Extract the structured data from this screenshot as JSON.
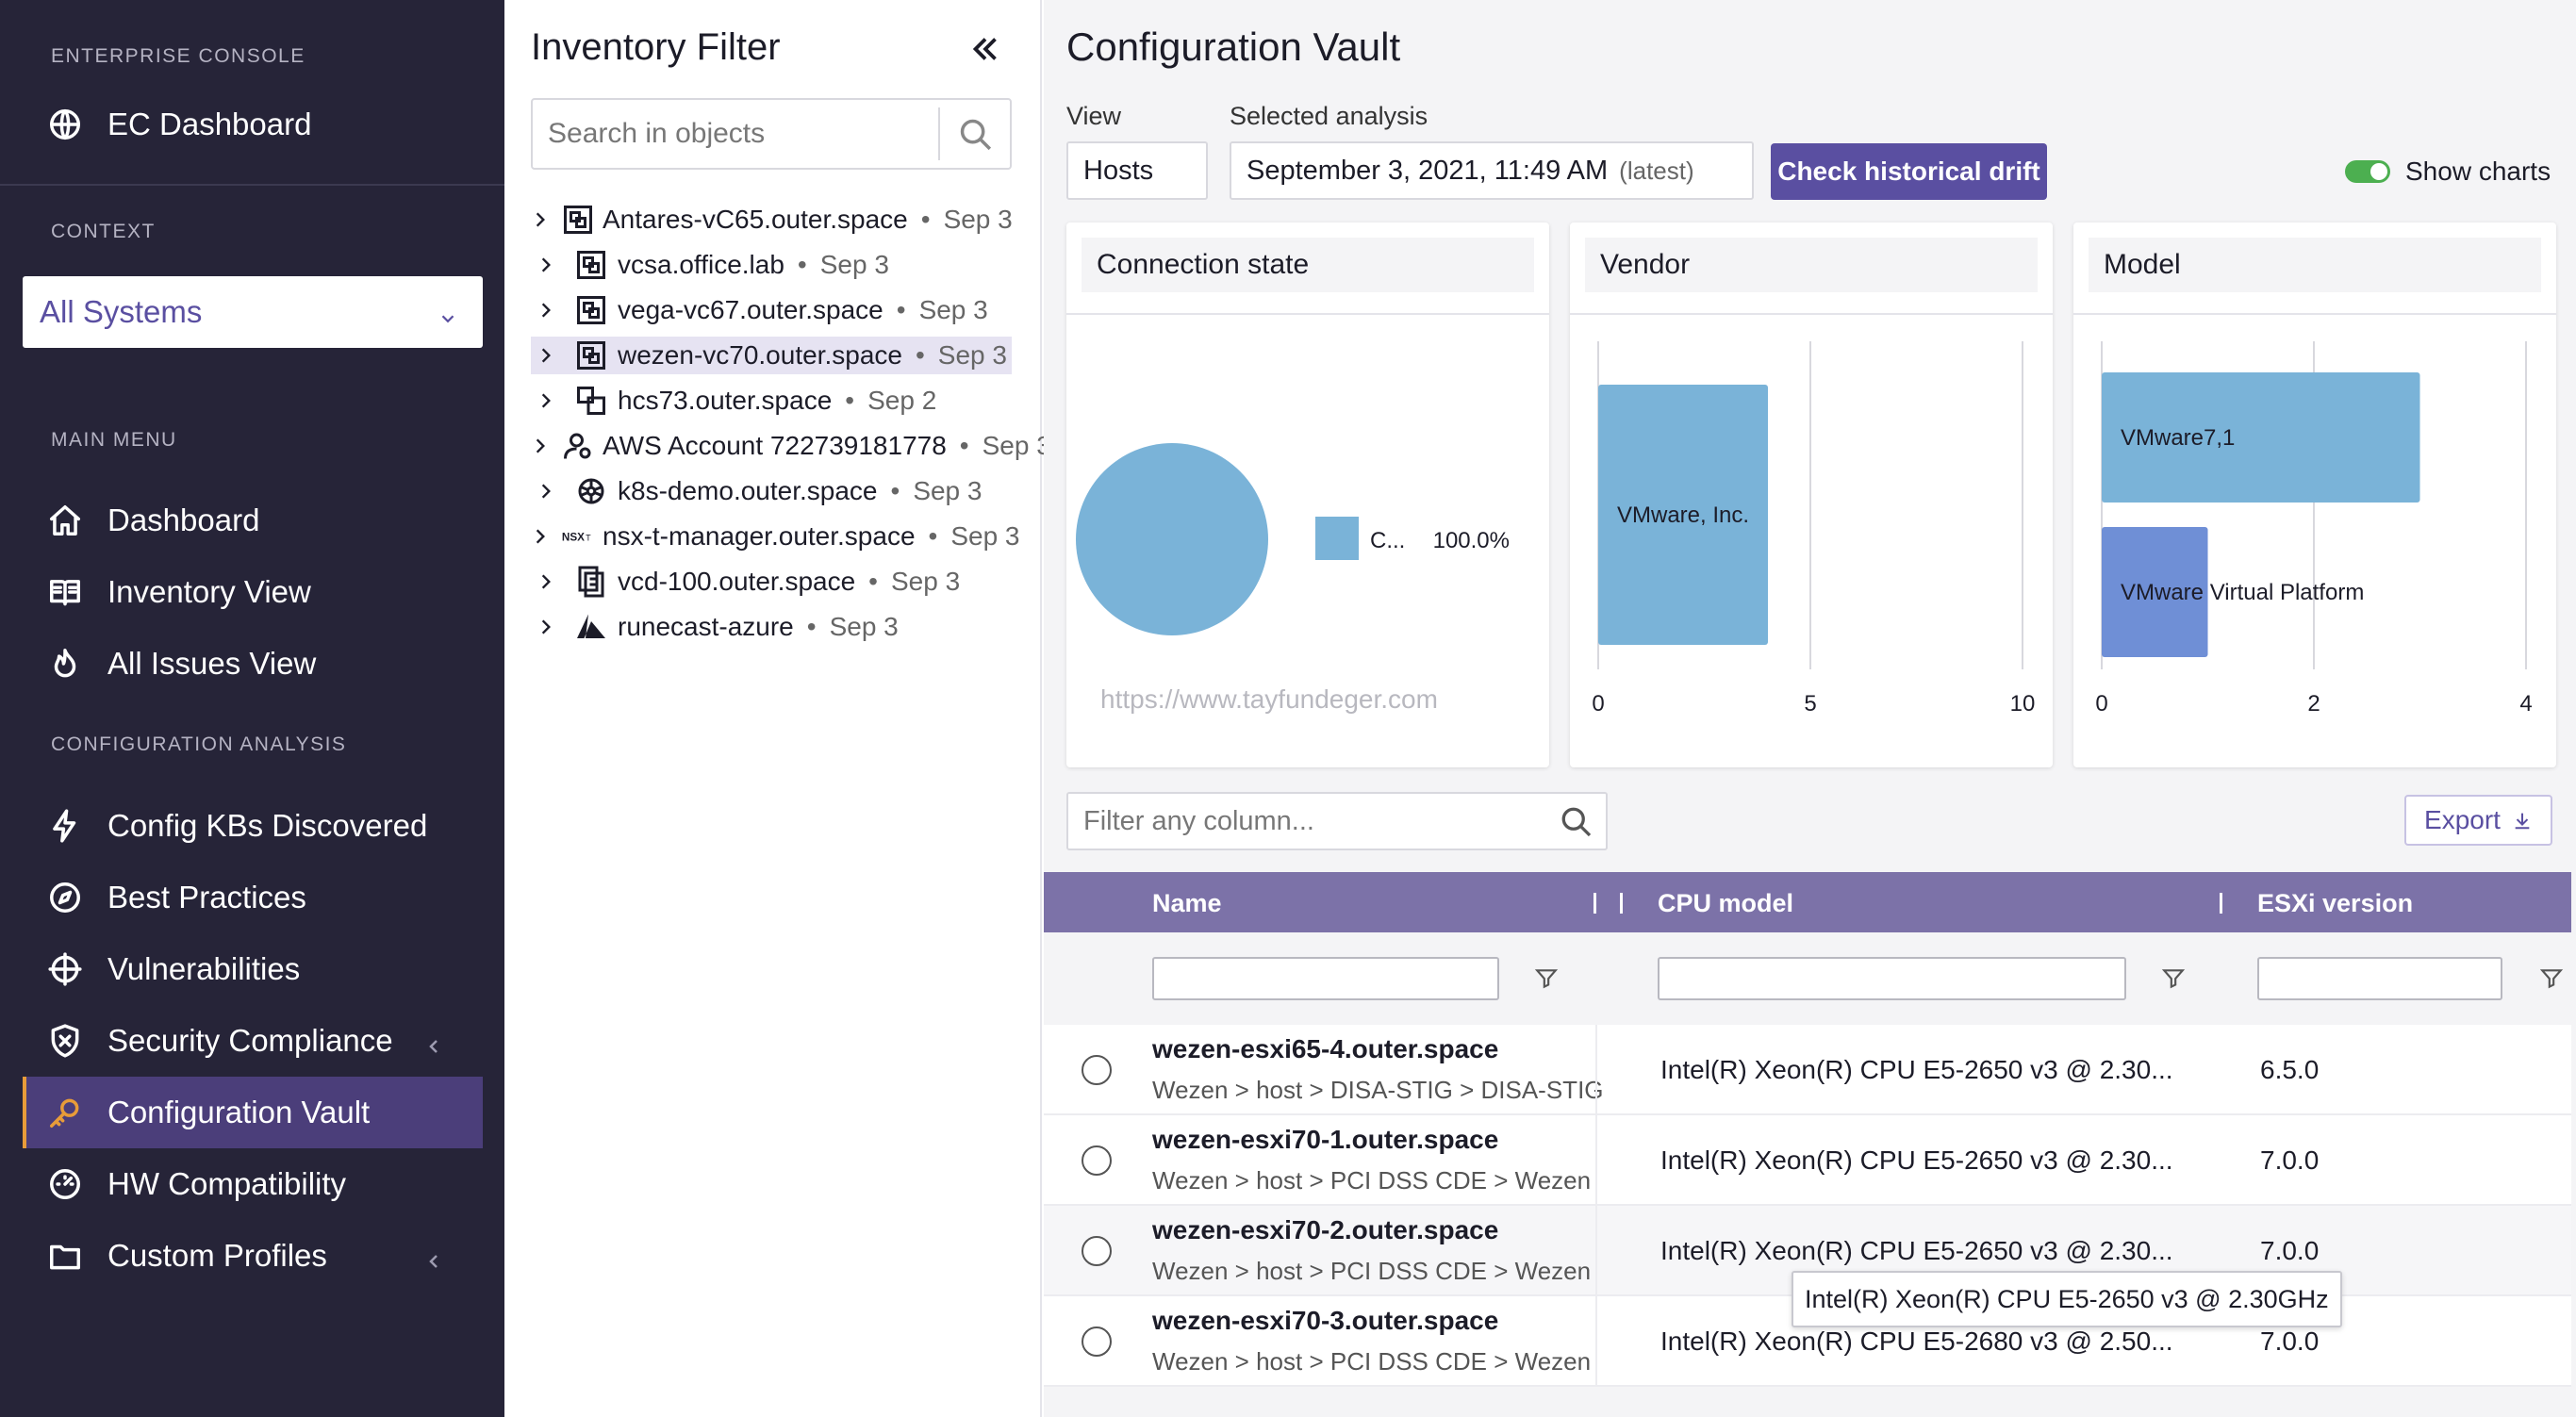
{
  "sidebar": {
    "sections": {
      "console": "ENTERPRISE CONSOLE",
      "context": "CONTEXT",
      "main_menu": "MAIN MENU",
      "config_analysis": "CONFIGURATION ANALYSIS"
    },
    "ec_dashboard": "EC Dashboard",
    "context_value": "All Systems",
    "main_items": [
      "Dashboard",
      "Inventory View",
      "All Issues View"
    ],
    "config_items": [
      "Config KBs Discovered",
      "Best Practices",
      "Vulnerabilities",
      "Security Compliance",
      "Configuration Vault",
      "HW Compatibility",
      "Custom Profiles"
    ],
    "active_item": "Configuration Vault"
  },
  "filter": {
    "title": "Inventory Filter",
    "search_placeholder": "Search in objects",
    "tree": [
      {
        "name": "Antares-vC65.outer.space",
        "date": "Sep 3",
        "icon": "vcenter-icon"
      },
      {
        "name": "vcsa.office.lab",
        "date": "Sep 3",
        "icon": "vcenter-icon"
      },
      {
        "name": "vega-vc67.outer.space",
        "date": "Sep 3",
        "icon": "vcenter-icon"
      },
      {
        "name": "wezen-vc70.outer.space",
        "date": "Sep 3",
        "icon": "vcenter-icon",
        "selected": true
      },
      {
        "name": "hcs73.outer.space",
        "date": "Sep 2",
        "icon": "horizon-icon"
      },
      {
        "name": "AWS Account 722739181778",
        "date": "Sep 3",
        "icon": "aws-account-icon"
      },
      {
        "name": "k8s-demo.outer.space",
        "date": "Sep 3",
        "icon": "kubernetes-icon"
      },
      {
        "name": "nsx-t-manager.outer.space",
        "date": "Sep 3",
        "icon": "nsxt-icon"
      },
      {
        "name": "vcd-100.outer.space",
        "date": "Sep 3",
        "icon": "vcd-icon"
      },
      {
        "name": "runecast-azure",
        "date": "Sep 3",
        "icon": "azure-icon"
      }
    ]
  },
  "main": {
    "title": "Configuration Vault",
    "view_label": "View",
    "view_value": "Hosts",
    "analysis_label": "Selected analysis",
    "analysis_value": "September 3, 2021, 11:49 AM",
    "analysis_tag": "(latest)",
    "drift_button": "Check historical drift",
    "show_charts_label": "Show charts",
    "show_charts_on": true,
    "filter_placeholder": "Filter any column...",
    "export_label": "Export",
    "watermark": "https://www.tayfundeger.com"
  },
  "chart_data": [
    {
      "type": "pie",
      "title": "Connection state",
      "slices": [
        {
          "label": "C...",
          "value": 100.0,
          "percent_label": "100.0%",
          "color": "#7ab3d8"
        }
      ]
    },
    {
      "type": "bar",
      "orientation": "horizontal",
      "title": "Vendor",
      "categories": [
        "VMware, Inc."
      ],
      "values": [
        4
      ],
      "xlim": [
        0,
        10
      ],
      "ticks": [
        0,
        5,
        10
      ],
      "colors": [
        "#7ab3d8"
      ]
    },
    {
      "type": "bar",
      "orientation": "horizontal",
      "title": "Model",
      "categories": [
        "VMware7,1",
        "VMware Virtual Platform"
      ],
      "values": [
        3,
        1
      ],
      "xlim": [
        0,
        4
      ],
      "ticks": [
        0,
        2,
        4
      ],
      "colors": [
        "#7ab3d8",
        "#6f8fd6"
      ]
    }
  ],
  "table": {
    "columns": [
      "Name",
      "CPU model",
      "ESXi version"
    ],
    "rows": [
      {
        "name": "wezen-esxi65-4.outer.space",
        "path": "Wezen > host > DISA-STIG > DISA-STIG",
        "cpu": "Intel(R) Xeon(R) CPU E5-2650 v3 @ 2.30...",
        "esxi": "6.5.0"
      },
      {
        "name": "wezen-esxi70-1.outer.space",
        "path": "Wezen > host > PCI DSS CDE > Wezen",
        "cpu": "Intel(R) Xeon(R) CPU E5-2650 v3 @ 2.30...",
        "esxi": "7.0.0"
      },
      {
        "name": "wezen-esxi70-2.outer.space",
        "path": "Wezen > host > PCI DSS CDE > Wezen",
        "cpu": "Intel(R) Xeon(R) CPU E5-2650 v3 @ 2.30...",
        "esxi": "7.0.0"
      },
      {
        "name": "wezen-esxi70-3.outer.space",
        "path": "Wezen > host > PCI DSS CDE > Wezen",
        "cpu": "Intel(R) Xeon(R) CPU E5-2680 v3 @ 2.50...",
        "esxi": "7.0.0"
      }
    ],
    "tooltip": "Intel(R) Xeon(R) CPU E5-2650 v3 @ 2.30GHz"
  }
}
